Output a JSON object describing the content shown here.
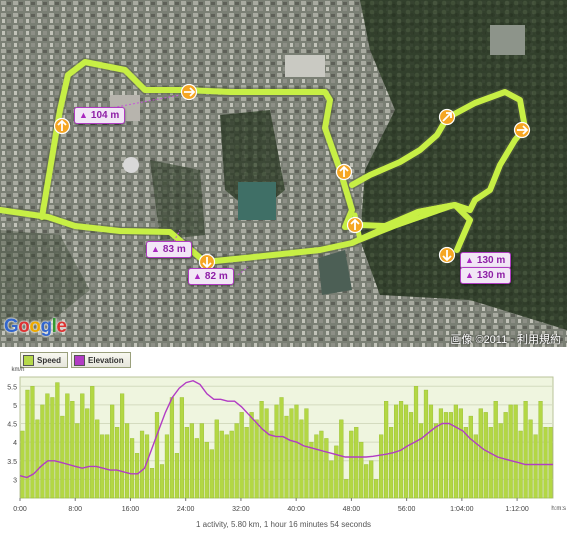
{
  "map": {
    "provider_logo": "Google",
    "copyright": "画像 ©2011 - 利用規約",
    "elevation_markers": [
      {
        "label": "104 m"
      },
      {
        "label": "83 m"
      },
      {
        "label": "82 m"
      },
      {
        "label": "130 m"
      },
      {
        "label": "130 m"
      }
    ],
    "colors": {
      "route": "#c7ef45",
      "marker": "#f5a623",
      "elevation": "#b23cc4"
    }
  },
  "chart": {
    "legend": [
      {
        "label": "Speed",
        "color": "#b6d94a"
      },
      {
        "label": "Elevation",
        "color": "#b23cc4"
      }
    ],
    "summary": "1 activity, 5.80 km, 1 hour 16 minutes 54 seconds"
  },
  "chart_data": {
    "type": "bar",
    "ylabel": "km/h",
    "xlabel": "h:m:s",
    "ylim": [
      2.5,
      5.75
    ],
    "x_tick_labels": [
      "0:00",
      "8:00",
      "16:00",
      "24:00",
      "32:00",
      "40:00",
      "48:00",
      "56:00",
      "1:04:00",
      "1:12:00"
    ],
    "y_tick_labels": [
      "3",
      "3.5",
      "4",
      "4.5",
      "5",
      "5.5"
    ],
    "series": [
      {
        "name": "Speed",
        "type": "bar",
        "values": [
          4.3,
          5.4,
          5.5,
          4.6,
          5.0,
          5.3,
          5.2,
          5.6,
          4.7,
          5.3,
          5.1,
          4.5,
          5.3,
          4.9,
          5.5,
          4.6,
          4.2,
          4.2,
          5.0,
          4.4,
          5.3,
          4.5,
          4.1,
          3.7,
          4.3,
          4.2,
          3.3,
          4.8,
          3.4,
          4.2,
          5.2,
          3.7,
          5.2,
          4.4,
          4.5,
          4.1,
          4.5,
          4.0,
          3.8,
          4.6,
          4.3,
          4.2,
          4.3,
          4.5,
          4.8,
          4.4,
          4.8,
          4.6,
          5.1,
          4.9,
          4.3,
          5.0,
          5.2,
          4.7,
          4.9,
          5.0,
          4.6,
          4.9,
          4.0,
          4.2,
          4.3,
          4.1,
          3.5,
          3.9,
          4.6,
          3.0,
          4.3,
          4.4,
          4.0,
          3.4,
          3.5,
          3.0,
          4.2,
          5.1,
          4.4,
          5.0,
          5.1,
          5.0,
          4.8,
          5.5,
          4.5,
          5.4,
          5.0,
          4.5,
          4.9,
          4.8,
          4.8,
          5.0,
          4.9,
          4.4,
          4.7,
          4.2,
          4.9,
          4.8,
          4.4,
          5.1,
          4.5,
          4.8,
          5.0,
          5.0,
          4.3,
          5.1,
          4.6,
          4.2,
          5.1,
          4.4,
          4.4
        ]
      },
      {
        "name": "Elevation",
        "type": "line",
        "x": [
          0,
          1,
          2,
          3,
          4,
          5,
          6,
          7,
          8,
          9,
          10,
          11,
          12,
          13,
          14,
          15,
          16,
          17,
          18,
          19,
          20,
          21,
          22,
          23,
          24,
          25,
          26,
          27,
          28,
          29,
          30,
          31,
          32,
          33,
          34,
          35,
          36,
          37,
          38,
          39,
          40,
          41,
          42,
          43,
          44,
          45,
          46,
          47,
          48,
          49,
          50,
          51,
          52,
          53,
          54,
          55,
          56,
          57,
          58,
          59,
          60,
          61,
          62,
          63,
          64,
          65,
          66,
          67,
          68,
          69,
          70,
          71,
          72,
          73,
          74,
          75,
          76,
          77
        ],
        "values": [
          3.1,
          3.05,
          3.15,
          3.35,
          3.5,
          3.5,
          3.45,
          3.4,
          3.35,
          3.3,
          3.35,
          3.35,
          3.3,
          3.25,
          3.25,
          3.2,
          3.15,
          3.15,
          3.3,
          3.8,
          4.3,
          4.8,
          5.2,
          5.45,
          5.6,
          5.65,
          5.55,
          5.3,
          5.15,
          5.15,
          5.1,
          5.1,
          4.95,
          4.75,
          4.55,
          4.35,
          4.2,
          4.15,
          4.15,
          4.05,
          4.0,
          3.9,
          3.85,
          3.8,
          3.75,
          3.7,
          3.65,
          3.6,
          3.6,
          3.6,
          3.6,
          3.62,
          3.65,
          3.68,
          3.72,
          3.78,
          3.9,
          4.0,
          4.1,
          4.25,
          4.4,
          4.5,
          4.5,
          4.4,
          4.3,
          4.1,
          3.95,
          3.8,
          3.7,
          3.6,
          3.55,
          3.5,
          3.45,
          3.4,
          3.4,
          3.4,
          3.4,
          3.4
        ]
      }
    ],
    "grid": true,
    "legend_position": "top-left"
  }
}
